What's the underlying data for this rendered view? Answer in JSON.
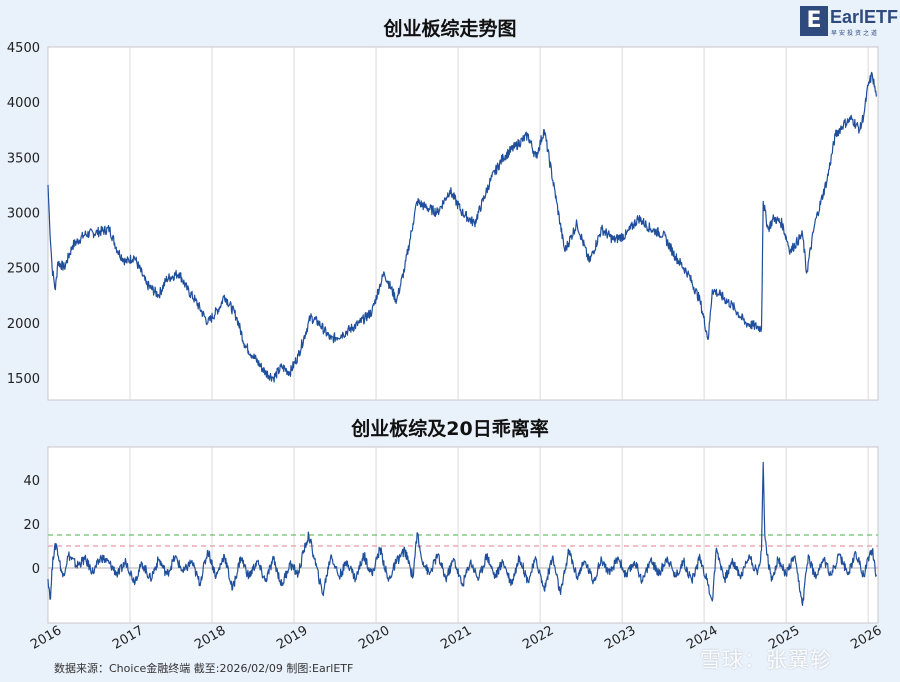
{
  "title_top": "创业板综走势图",
  "title_bottom": "创业板综及20日乖离率",
  "logo": {
    "mark": "E",
    "text": "EarlETF",
    "sub": "早安投资之道"
  },
  "source": "数据来源：Choice金融终端 截至:2026/02/09 制图:EarlETF",
  "watermark": "雪球：张翼轸",
  "colors": {
    "line": "#1f4e9a",
    "background": "#e9f1fb",
    "plot_bg": "#ffffff",
    "grid": "#d9d9d9",
    "ref_green": "#6cbf6c",
    "ref_red": "#e89aa6"
  },
  "chart_data": [
    {
      "type": "line",
      "title": "创业板综走势图",
      "xlabel": "",
      "ylabel": "",
      "xlim": [
        2016.0,
        2026.12
      ],
      "ylim": [
        1300,
        4500
      ],
      "yticks": [
        1500,
        2000,
        2500,
        3000,
        3500,
        4000,
        4500
      ],
      "grid": "vertical",
      "series": [
        {
          "x": [
            2016.0,
            2016.02,
            2016.05,
            2016.09,
            2016.12,
            2016.2,
            2016.3,
            2016.45,
            2016.6,
            2016.75,
            2016.85,
            2016.95,
            2017.05,
            2017.2,
            2017.35,
            2017.45,
            2017.6,
            2017.7,
            2017.8,
            2017.95,
            2018.1,
            2018.15,
            2018.3,
            2018.4,
            2018.5,
            2018.65,
            2018.75,
            2018.85,
            2018.95,
            2019.05,
            2019.2,
            2019.3,
            2019.45,
            2019.6,
            2019.8,
            2019.95,
            2020.05,
            2020.1,
            2020.25,
            2020.35,
            2020.45,
            2020.5,
            2020.6,
            2020.75,
            2020.9,
            2021.05,
            2021.2,
            2021.4,
            2021.55,
            2021.7,
            2021.85,
            2021.95,
            2022.05,
            2022.2,
            2022.3,
            2022.45,
            2022.6,
            2022.75,
            2022.9,
            2023.05,
            2023.2,
            2023.35,
            2023.5,
            2023.65,
            2023.8,
            2023.95,
            2024.05,
            2024.1,
            2024.2,
            2024.35,
            2024.5,
            2024.7,
            2024.72,
            2024.78,
            2024.85,
            2024.95,
            2025.05,
            2025.2,
            2025.25,
            2025.35,
            2025.5,
            2025.6,
            2025.7,
            2025.8,
            2025.9,
            2025.95,
            2026.0,
            2026.05,
            2026.1
          ],
          "y": [
            3250,
            2900,
            2500,
            2300,
            2550,
            2500,
            2700,
            2800,
            2820,
            2850,
            2650,
            2550,
            2600,
            2350,
            2250,
            2400,
            2450,
            2300,
            2200,
            2000,
            2150,
            2250,
            2050,
            1800,
            1700,
            1550,
            1500,
            1600,
            1550,
            1700,
            2050,
            2000,
            1850,
            1900,
            2000,
            2100,
            2350,
            2450,
            2200,
            2500,
            2900,
            3100,
            3050,
            3000,
            3200,
            3000,
            2900,
            3300,
            3500,
            3600,
            3700,
            3500,
            3750,
            3100,
            2650,
            2900,
            2550,
            2850,
            2750,
            2800,
            2950,
            2850,
            2800,
            2600,
            2450,
            2200,
            1850,
            2300,
            2250,
            2150,
            2000,
            1950,
            3100,
            2850,
            2950,
            2900,
            2650,
            2800,
            2450,
            2900,
            3300,
            3700,
            3800,
            3850,
            3750,
            3900,
            4150,
            4250,
            4050
          ]
        }
      ]
    },
    {
      "type": "line",
      "title": "创业板综及20日乖离率",
      "xlabel": "",
      "ylabel": "",
      "xlim": [
        2016.0,
        2026.12
      ],
      "ylim": [
        -25,
        55
      ],
      "yticks": [
        0,
        20,
        40
      ],
      "xticks": [
        2016,
        2017,
        2018,
        2019,
        2020,
        2021,
        2022,
        2023,
        2024,
        2025,
        2026
      ],
      "reference_lines": [
        {
          "y": 15,
          "color": "green",
          "style": "dashed"
        },
        {
          "y": 10,
          "color": "red",
          "style": "dashed"
        }
      ],
      "series": [
        {
          "x": [
            2016.0,
            2016.03,
            2016.06,
            2016.1,
            2016.14,
            2016.18,
            2016.25,
            2016.35,
            2016.45,
            2016.55,
            2016.65,
            2016.75,
            2016.85,
            2016.95,
            2017.05,
            2017.15,
            2017.25,
            2017.35,
            2017.45,
            2017.55,
            2017.65,
            2017.75,
            2017.85,
            2017.95,
            2018.05,
            2018.15,
            2018.25,
            2018.35,
            2018.45,
            2018.55,
            2018.65,
            2018.75,
            2018.85,
            2018.95,
            2019.05,
            2019.12,
            2019.18,
            2019.25,
            2019.35,
            2019.45,
            2019.55,
            2019.65,
            2019.75,
            2019.85,
            2019.95,
            2020.05,
            2020.15,
            2020.25,
            2020.35,
            2020.45,
            2020.5,
            2020.55,
            2020.65,
            2020.75,
            2020.85,
            2020.95,
            2021.05,
            2021.15,
            2021.25,
            2021.35,
            2021.45,
            2021.55,
            2021.65,
            2021.75,
            2021.85,
            2021.95,
            2022.05,
            2022.15,
            2022.25,
            2022.35,
            2022.45,
            2022.55,
            2022.65,
            2022.75,
            2022.85,
            2022.95,
            2023.05,
            2023.15,
            2023.25,
            2023.35,
            2023.45,
            2023.55,
            2023.65,
            2023.75,
            2023.85,
            2023.95,
            2024.05,
            2024.1,
            2024.15,
            2024.25,
            2024.35,
            2024.45,
            2024.55,
            2024.65,
            2024.7,
            2024.72,
            2024.74,
            2024.77,
            2024.82,
            2024.9,
            2025.0,
            2025.1,
            2025.2,
            2025.27,
            2025.35,
            2025.45,
            2025.55,
            2025.65,
            2025.75,
            2025.85,
            2025.95,
            2026.0,
            2026.05,
            2026.1
          ],
          "y": [
            -5,
            -14,
            5,
            11,
            3,
            -4,
            6,
            1,
            4,
            -2,
            5,
            2,
            -3,
            3,
            -6,
            2,
            -5,
            4,
            -3,
            5,
            -2,
            3,
            -7,
            8,
            -4,
            6,
            -10,
            5,
            -4,
            3,
            -6,
            4,
            -8,
            2,
            -3,
            8,
            15,
            4,
            -12,
            6,
            -4,
            3,
            -5,
            6,
            -3,
            9,
            -6,
            3,
            8,
            -4,
            16,
            5,
            -3,
            6,
            -5,
            4,
            -8,
            3,
            -5,
            6,
            -4,
            3,
            -7,
            5,
            -6,
            4,
            -10,
            5,
            -12,
            8,
            -4,
            3,
            -6,
            4,
            -3,
            5,
            -4,
            3,
            -6,
            4,
            -3,
            5,
            -4,
            3,
            -6,
            5,
            -8,
            -15,
            9,
            -5,
            3,
            -4,
            6,
            -3,
            8,
            48,
            15,
            6,
            -6,
            4,
            -3,
            5,
            -17,
            6,
            -4,
            4,
            -3,
            6,
            -3,
            7,
            -4,
            5,
            8,
            -3
          ]
        }
      ]
    }
  ]
}
